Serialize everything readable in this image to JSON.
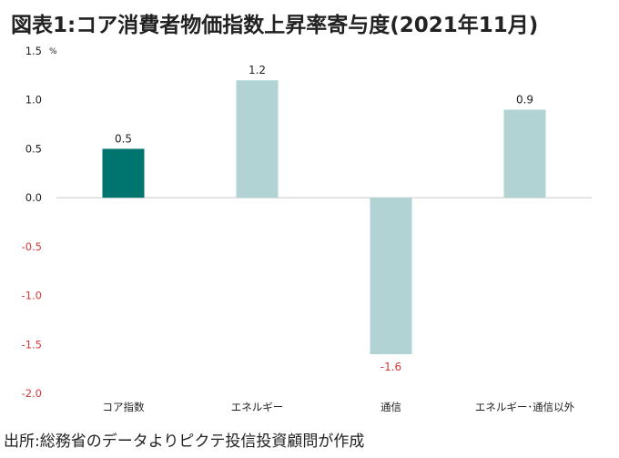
{
  "header": {
    "title": "図表1:コア消費者物価指数上昇率寄与度(2021年11月)"
  },
  "footer": {
    "source": "出所:総務省のデータよりピクテ投信投資顧問が作成"
  },
  "chart_data": {
    "type": "bar",
    "title": "図表1:コア消費者物価指数上昇率寄与度(2021年11月)",
    "unit_label": "%",
    "categories": [
      "コア指数",
      "エネルギー",
      "通信",
      "エネルギー･通信以外"
    ],
    "values": [
      0.5,
      1.2,
      -1.6,
      0.9
    ],
    "data_labels": [
      "0.5",
      "1.2",
      "-1.6",
      "0.9"
    ],
    "yticks": [
      "1.5",
      "1.0",
      "0.5",
      "0.0",
      "-0.5",
      "-1.0",
      "-1.5",
      "-2.0"
    ],
    "ytick_values": [
      1.5,
      1.0,
      0.5,
      0.0,
      -0.5,
      -1.0,
      -1.5,
      -2.0
    ],
    "ylim": [
      -2.0,
      1.5
    ],
    "grid": false,
    "colors": {
      "highlight": "#00756f",
      "bar": "#b1d3d4",
      "negative_text": "#d93a3a"
    },
    "bar_colors": [
      "#00756f",
      "#b1d3d4",
      "#b1d3d4",
      "#b1d3d4"
    ]
  }
}
